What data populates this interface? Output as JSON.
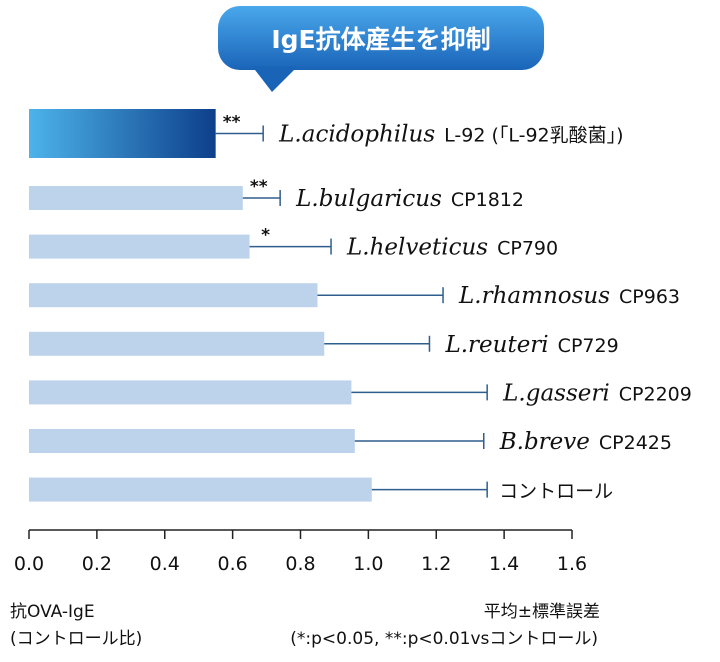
{
  "chart_data": {
    "type": "bar",
    "orientation": "horizontal",
    "callout": "IgE抗体産生を抑制",
    "xlim": [
      0.0,
      1.6
    ],
    "x_ticks": [
      "0.0",
      "0.2",
      "0.4",
      "0.6",
      "0.8",
      "1.0",
      "1.2",
      "1.4",
      "1.6"
    ],
    "xlabel": [
      "抗OVA-IgE",
      "(コントロール比)"
    ],
    "error_note": "平均±標準誤差",
    "sig_note": "(*:p<0.05, **:p<0.01vsコントロール)",
    "colors": {
      "highlight_start": "#4db3ea",
      "highlight_end": "#0d3f8a",
      "bar": "#bdd3ec",
      "error": "#2e5e8e",
      "callout": "#1e73c4"
    },
    "bars": [
      {
        "species": "L.acidophilus",
        "strain": "L-92 (「L-92乳酸菌」)",
        "value": 0.55,
        "err": 0.14,
        "sig": "**",
        "highlight": true
      },
      {
        "species": "L.bulgaricus",
        "strain": "CP1812",
        "value": 0.63,
        "err": 0.11,
        "sig": "**",
        "highlight": false
      },
      {
        "species": "L.helveticus",
        "strain": "CP790",
        "value": 0.65,
        "err": 0.24,
        "sig": "*",
        "highlight": false
      },
      {
        "species": "L.rhamnosus",
        "strain": "CP963",
        "value": 0.85,
        "err": 0.37,
        "sig": "",
        "highlight": false
      },
      {
        "species": "L.reuteri",
        "strain": "CP729",
        "value": 0.87,
        "err": 0.31,
        "sig": "",
        "highlight": false
      },
      {
        "species": "L.gasseri",
        "strain": "CP2209",
        "value": 0.95,
        "err": 0.4,
        "sig": "",
        "highlight": false
      },
      {
        "species": "B.breve",
        "strain": "CP2425",
        "value": 0.96,
        "err": 0.38,
        "sig": "",
        "highlight": false
      },
      {
        "species": "",
        "strain": "コントロール",
        "value": 1.01,
        "err": 0.34,
        "sig": "",
        "highlight": false
      }
    ]
  }
}
